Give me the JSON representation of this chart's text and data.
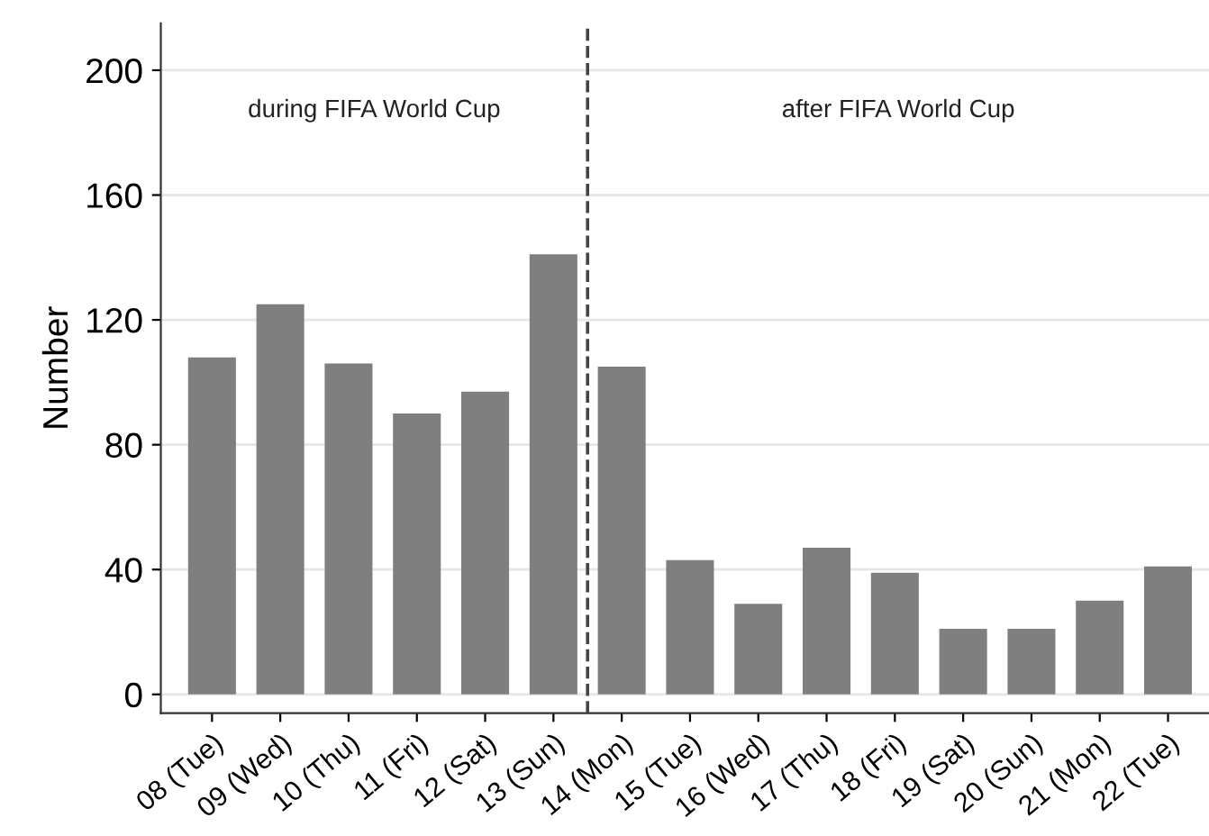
{
  "chart_data": {
    "type": "bar",
    "ylabel": "Number",
    "x": [
      8,
      9,
      10,
      11,
      12,
      13,
      14,
      15,
      16,
      17,
      18,
      19,
      20,
      21,
      22
    ],
    "values": [
      108,
      125,
      106,
      90,
      97,
      141,
      105,
      43,
      29,
      47,
      39,
      21,
      21,
      30,
      41
    ],
    "color": "#7f7f7f",
    "xlim": [
      7.25,
      22.6
    ],
    "xticks": [
      {
        "value": 8,
        "label": "08 (Tue)"
      },
      {
        "value": 9,
        "label": "09 (Wed)"
      },
      {
        "value": 10,
        "label": "10 (Thu)"
      },
      {
        "value": 11,
        "label": "11 (Fri)"
      },
      {
        "value": 12,
        "label": "12 (Sat)"
      },
      {
        "value": 13,
        "label": "13 (Sun)"
      },
      {
        "value": 14,
        "label": "14 (Mon)"
      },
      {
        "value": 15,
        "label": "15 (Tue)"
      },
      {
        "value": 16,
        "label": "16 (Wed)"
      },
      {
        "value": 17,
        "label": "17 (Thu)"
      },
      {
        "value": 18,
        "label": "18 (Fri)"
      },
      {
        "value": 19,
        "label": "19 (Sat)"
      },
      {
        "value": 20,
        "label": "20 (Sun)"
      },
      {
        "value": 21,
        "label": "21 (Mon)"
      },
      {
        "value": 22,
        "label": "22 (Tue)"
      }
    ],
    "ylim": [
      -6,
      215
    ],
    "yticks": [
      0,
      40,
      80,
      120,
      160,
      200
    ],
    "grid": "y",
    "ref_lines": [
      {
        "axis": "x",
        "value": 13.5,
        "color": "#444444",
        "line_style": "dashed"
      }
    ],
    "annotations": [
      "during FIFA World Cup",
      "after FIFA World Cup"
    ]
  }
}
